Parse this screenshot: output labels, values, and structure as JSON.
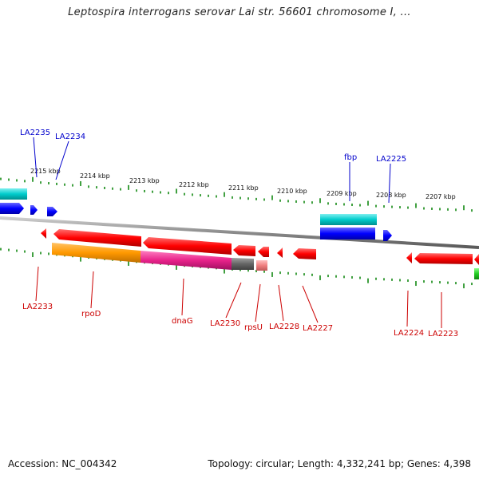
{
  "title": "Leptospira interrogans serovar Lai str. 56601 chromosome I, ...",
  "footer": {
    "accession": "Accession: NC_004342",
    "summary": "Topology: circular; Length: 4,332,241 bp; Genes: 4,398"
  },
  "colors": {
    "backbone": "#8a8a8a",
    "tick": "#118811",
    "upper_label": "#0000cc",
    "lower_label": "#cc0000",
    "forward_gene": "#0000ff",
    "reverse_gene": "#ff0000",
    "cyan_feature": "#00cccc",
    "orange_feature": "#ff9900",
    "magenta_feature": "#e8228a",
    "gray_feature": "#666666",
    "pink_feature": "#f08080",
    "green_feature": "#22cc22"
  },
  "kbp_labels": [
    "2215 kbp",
    "2214 kbp",
    "2213 kbp",
    "2212 kbp",
    "2211 kbp",
    "2210 kbp",
    "2209 kbp",
    "2208 kbp",
    "2207 kbp"
  ],
  "upper_gene_labels": [
    "LA2235",
    "LA2234",
    "fbp",
    "LA2225"
  ],
  "lower_gene_labels": [
    "LA2233",
    "rpoD",
    "dnaG",
    "LA2230",
    "rpsU",
    "LA2228",
    "LA2227",
    "LA2224",
    "LA2223"
  ]
}
